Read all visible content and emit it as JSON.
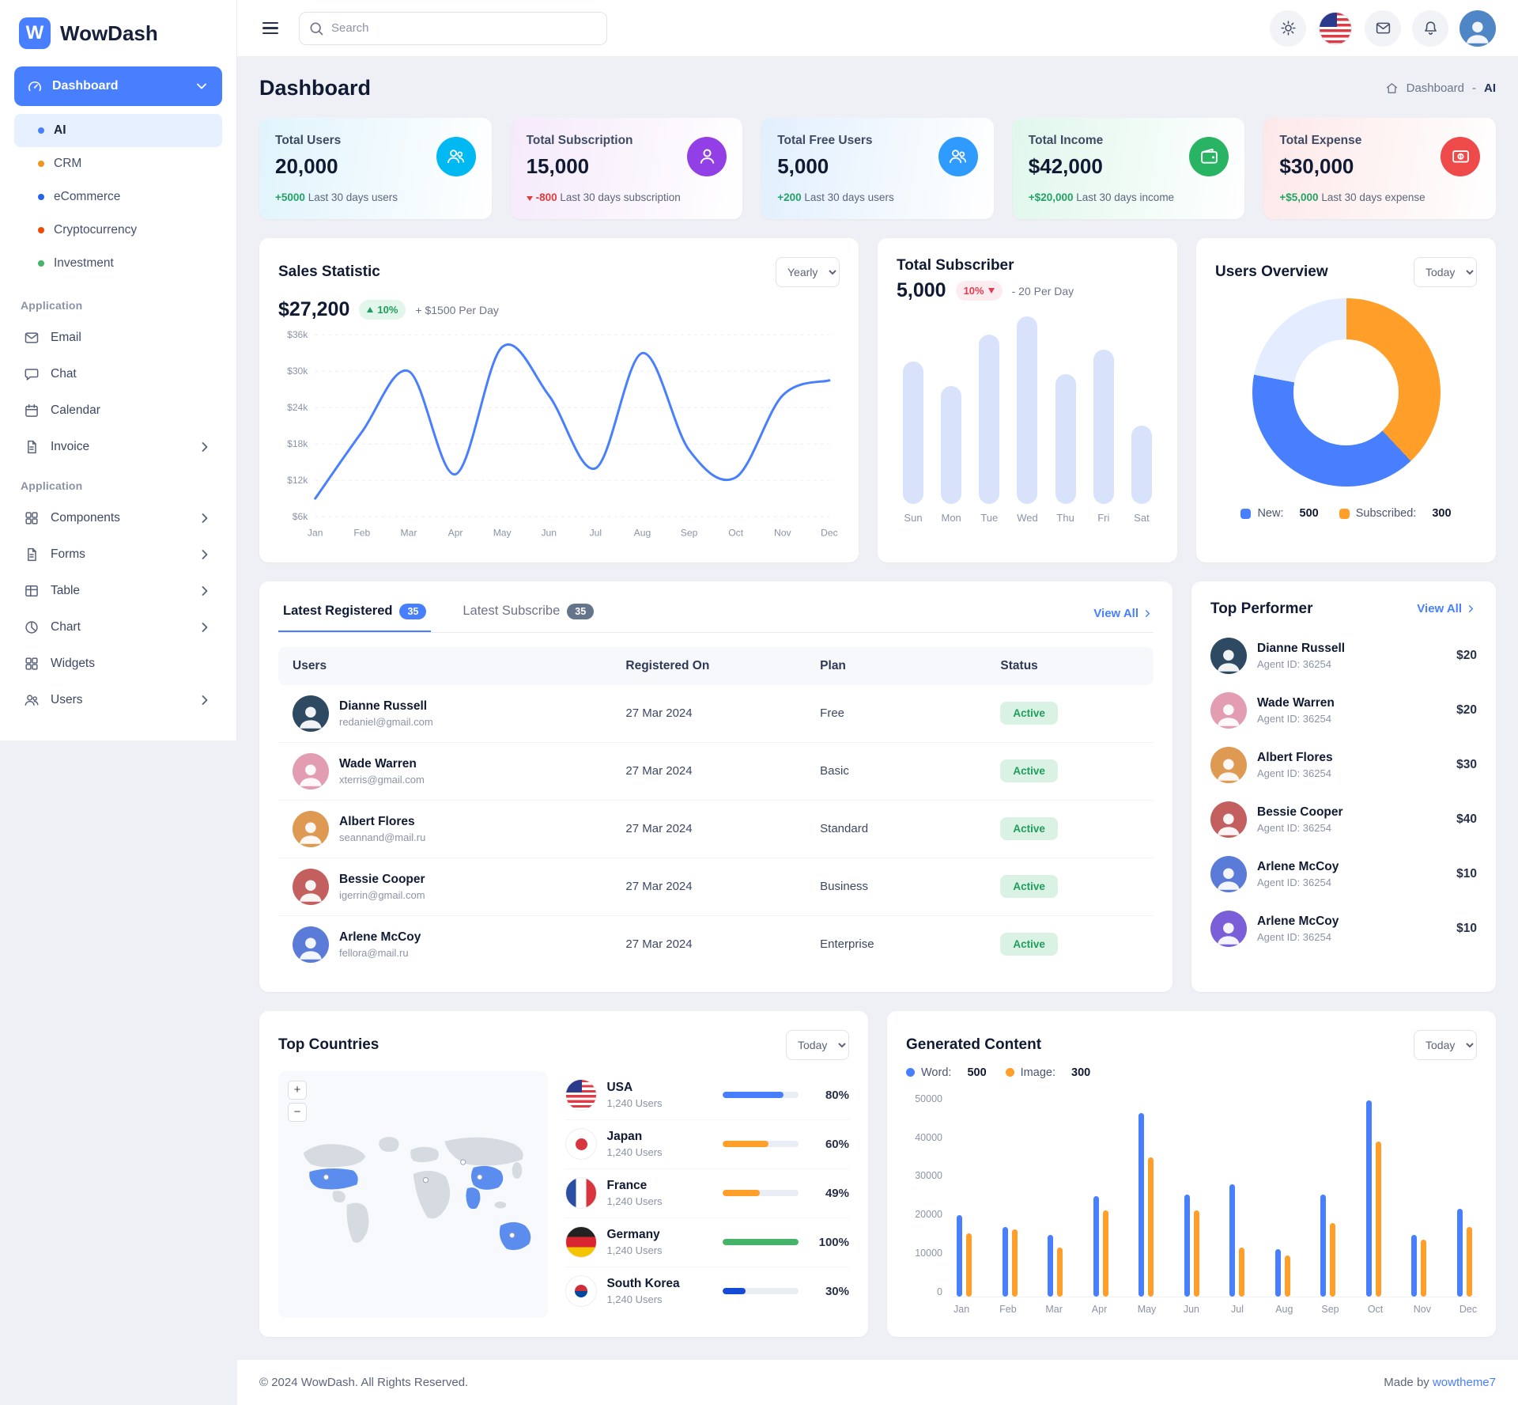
{
  "app": {
    "name": "WowDash",
    "footer_copyright": "© 2024 WowDash. All Rights Reserved.",
    "footer_made_by": "Made by ",
    "footer_made_by_link": "wowtheme7"
  },
  "header": {
    "search_placeholder": "Search"
  },
  "sidebar": {
    "dashboard_label": "Dashboard",
    "dashboard_items": [
      {
        "label": "AI",
        "dot": "#487fff"
      },
      {
        "label": "CRM",
        "dot": "#f4941e"
      },
      {
        "label": "eCommerce",
        "dot": "#2563eb"
      },
      {
        "label": "Cryptocurrency",
        "dot": "#ef4a00"
      },
      {
        "label": "Investment",
        "dot": "#45b369"
      }
    ],
    "section1_label": "Application",
    "section1_items": [
      {
        "label": "Email"
      },
      {
        "label": "Chat"
      },
      {
        "label": "Calendar"
      },
      {
        "label": "Invoice"
      }
    ],
    "section2_label": "Application",
    "section2_items": [
      {
        "label": "Components"
      },
      {
        "label": "Forms"
      },
      {
        "label": "Table"
      },
      {
        "label": "Chart"
      },
      {
        "label": "Widgets"
      },
      {
        "label": "Users"
      }
    ]
  },
  "page_title": "Dashboard",
  "breadcrumb": {
    "root": "Dashboard",
    "separator": "-",
    "current": "AI"
  },
  "stats": [
    {
      "title": "Total Users",
      "value": "20,000",
      "delta": "+5000",
      "desc": "Last 30 days users",
      "trend": "up",
      "tint": "#e0f4fc",
      "icon_bg": "#00b8f2"
    },
    {
      "title": "Total Subscription",
      "value": "15,000",
      "delta": "-800",
      "desc": "Last 30 days subscription",
      "trend": "down",
      "tint": "#f5eafb",
      "icon_bg": "#9240e6"
    },
    {
      "title": "Total Free Users",
      "value": "5,000",
      "delta": "+200",
      "desc": "Last 30 days users",
      "trend": "up",
      "tint": "#e1effd",
      "icon_bg": "#2f9bff"
    },
    {
      "title": "Total Income",
      "value": "$42,000",
      "delta": "+$20,000",
      "desc": "Last 30 days income",
      "trend": "up",
      "tint": "#e0f7ec",
      "icon_bg": "#28b463"
    },
    {
      "title": "Total Expense",
      "value": "$30,000",
      "delta": "+$5,000",
      "desc": "Last 30 days expense",
      "trend": "up",
      "tint": "#fde8e8",
      "icon_bg": "#ee4a4a"
    }
  ],
  "sales": {
    "title": "Sales Statistic",
    "select_value": "Yearly",
    "amount": "$27,200",
    "badge": "10%",
    "per_day": "+ $1500 Per Day"
  },
  "subscriber": {
    "title": "Total Subscriber",
    "amount": "5,000",
    "badge": "10%",
    "per_day": "- 20 Per Day"
  },
  "overview": {
    "title": "Users Overview",
    "select_value": "Today",
    "legend": [
      {
        "label": "New:",
        "value": "500",
        "color": "#487fff"
      },
      {
        "label": "Subscribed:",
        "value": "300",
        "color": "#ff9f29"
      }
    ]
  },
  "latest": {
    "tab1": "Latest Registered",
    "tab1_badge": "35",
    "tab2": "Latest Subscribe",
    "tab2_badge": "35",
    "view_all": "View All",
    "columns": [
      "Users",
      "Registered On",
      "Plan",
      "Status"
    ],
    "rows": [
      {
        "name": "Dianne Russell",
        "email": "redaniel@gmail.com",
        "date": "27 Mar 2024",
        "plan": "Free",
        "status": "Active"
      },
      {
        "name": "Wade Warren",
        "email": "xterris@gmail.com",
        "date": "27 Mar 2024",
        "plan": "Basic",
        "status": "Active"
      },
      {
        "name": "Albert Flores",
        "email": "seannand@mail.ru",
        "date": "27 Mar 2024",
        "plan": "Standard",
        "status": "Active"
      },
      {
        "name": "Bessie Cooper",
        "email": "igerrin@gmail.com",
        "date": "27 Mar 2024",
        "plan": "Business",
        "status": "Active"
      },
      {
        "name": "Arlene McCoy",
        "email": "fellora@mail.ru",
        "date": "27 Mar 2024",
        "plan": "Enterprise",
        "status": "Active"
      }
    ]
  },
  "performers": {
    "title": "Top Performer",
    "view_all": "View All",
    "items": [
      {
        "name": "Dianne Russell",
        "agent": "Agent ID: 36254",
        "amount": "$20"
      },
      {
        "name": "Wade Warren",
        "agent": "Agent ID: 36254",
        "amount": "$20"
      },
      {
        "name": "Albert Flores",
        "agent": "Agent ID: 36254",
        "amount": "$30"
      },
      {
        "name": "Bessie Cooper",
        "agent": "Agent ID: 36254",
        "amount": "$40"
      },
      {
        "name": "Arlene McCoy",
        "agent": "Agent ID: 36254",
        "amount": "$10"
      },
      {
        "name": "Arlene McCoy",
        "agent": "Agent ID: 36254",
        "amount": "$10"
      }
    ]
  },
  "countries": {
    "title": "Top Countries",
    "select_value": "Today",
    "items": [
      {
        "name": "USA",
        "users": "1,240 Users",
        "pct": 80,
        "pct_label": "80%",
        "color": "#487fff",
        "flag": "usa"
      },
      {
        "name": "Japan",
        "users": "1,240 Users",
        "pct": 60,
        "pct_label": "60%",
        "color": "#ff9f29",
        "flag": "japan"
      },
      {
        "name": "France",
        "users": "1,240 Users",
        "pct": 49,
        "pct_label": "49%",
        "color": "#ff9f29",
        "flag": "france"
      },
      {
        "name": "Germany",
        "users": "1,240 Users",
        "pct": 100,
        "pct_label": "100%",
        "color": "#45b369",
        "flag": "germany"
      },
      {
        "name": "South Korea",
        "users": "1,240 Users",
        "pct": 30,
        "pct_label": "30%",
        "color": "#144bd6",
        "flag": "skorea"
      }
    ]
  },
  "generated": {
    "title": "Generated Content",
    "select_value": "Today",
    "legend": [
      {
        "label": "Word:",
        "value": "500",
        "color": "#487fff"
      },
      {
        "label": "Image:",
        "value": "300",
        "color": "#ff9f29"
      }
    ]
  },
  "chart_data": [
    {
      "id": "sales_statistic",
      "type": "line",
      "title": "Sales Statistic",
      "x": [
        "Jan",
        "Feb",
        "Mar",
        "Apr",
        "May",
        "Jun",
        "Jul",
        "Aug",
        "Sep",
        "Oct",
        "Nov",
        "Dec"
      ],
      "values": [
        9000,
        20000,
        30000,
        13000,
        34000,
        26000,
        14000,
        33000,
        17000,
        12500,
        26000,
        28500
      ],
      "ylim": [
        6000,
        36000
      ],
      "yticks": [
        {
          "value": 36000,
          "label": "$36k"
        },
        {
          "value": 30000,
          "label": "$30k"
        },
        {
          "value": 24000,
          "label": "$24k"
        },
        {
          "value": 18000,
          "label": "$18k"
        },
        {
          "value": 12000,
          "label": "$12k"
        },
        {
          "value": 6000,
          "label": "$6k"
        }
      ],
      "color": "#487fff",
      "grid": true,
      "legend_position": "none"
    },
    {
      "id": "total_subscriber",
      "type": "bar",
      "title": "Total Subscriber",
      "categories": [
        "Sun",
        "Mon",
        "Tue",
        "Wed",
        "Thu",
        "Fri",
        "Sat"
      ],
      "values": [
        470,
        390,
        560,
        620,
        430,
        510,
        260
      ],
      "ylim": [
        0,
        620
      ],
      "color": "#d8e2fb"
    },
    {
      "id": "users_overview",
      "type": "pie",
      "title": "Users Overview",
      "segments": [
        {
          "label": "Subscribed",
          "value": 38,
          "color": "#ff9f29"
        },
        {
          "label": "New",
          "value": 40,
          "color": "#487fff"
        },
        {
          "label": "Other",
          "value": 22,
          "color": "#e4ecff"
        }
      ]
    },
    {
      "id": "generated_content",
      "type": "bar",
      "title": "Generated Content",
      "categories": [
        "Jan",
        "Feb",
        "Mar",
        "Apr",
        "May",
        "Jun",
        "Jul",
        "Aug",
        "Sep",
        "Oct",
        "Nov",
        "Dec"
      ],
      "series": [
        {
          "name": "Word",
          "color": "#487fff",
          "values": [
            20000,
            17000,
            15000,
            24500,
            45000,
            25000,
            27500,
            11500,
            25000,
            48000,
            15000,
            21500
          ]
        },
        {
          "name": "Image",
          "color": "#ff9f29",
          "values": [
            15500,
            16500,
            12000,
            21000,
            34000,
            21000,
            12000,
            10000,
            18000,
            38000,
            14000,
            17000
          ]
        }
      ],
      "ylim": [
        0,
        50000
      ],
      "yticks": [
        {
          "value": 50000,
          "label": "50000"
        },
        {
          "value": 40000,
          "label": "40000"
        },
        {
          "value": 30000,
          "label": "30000"
        },
        {
          "value": 20000,
          "label": "20000"
        },
        {
          "value": 10000,
          "label": "10000"
        },
        {
          "value": 0,
          "label": "0"
        }
      ]
    }
  ]
}
